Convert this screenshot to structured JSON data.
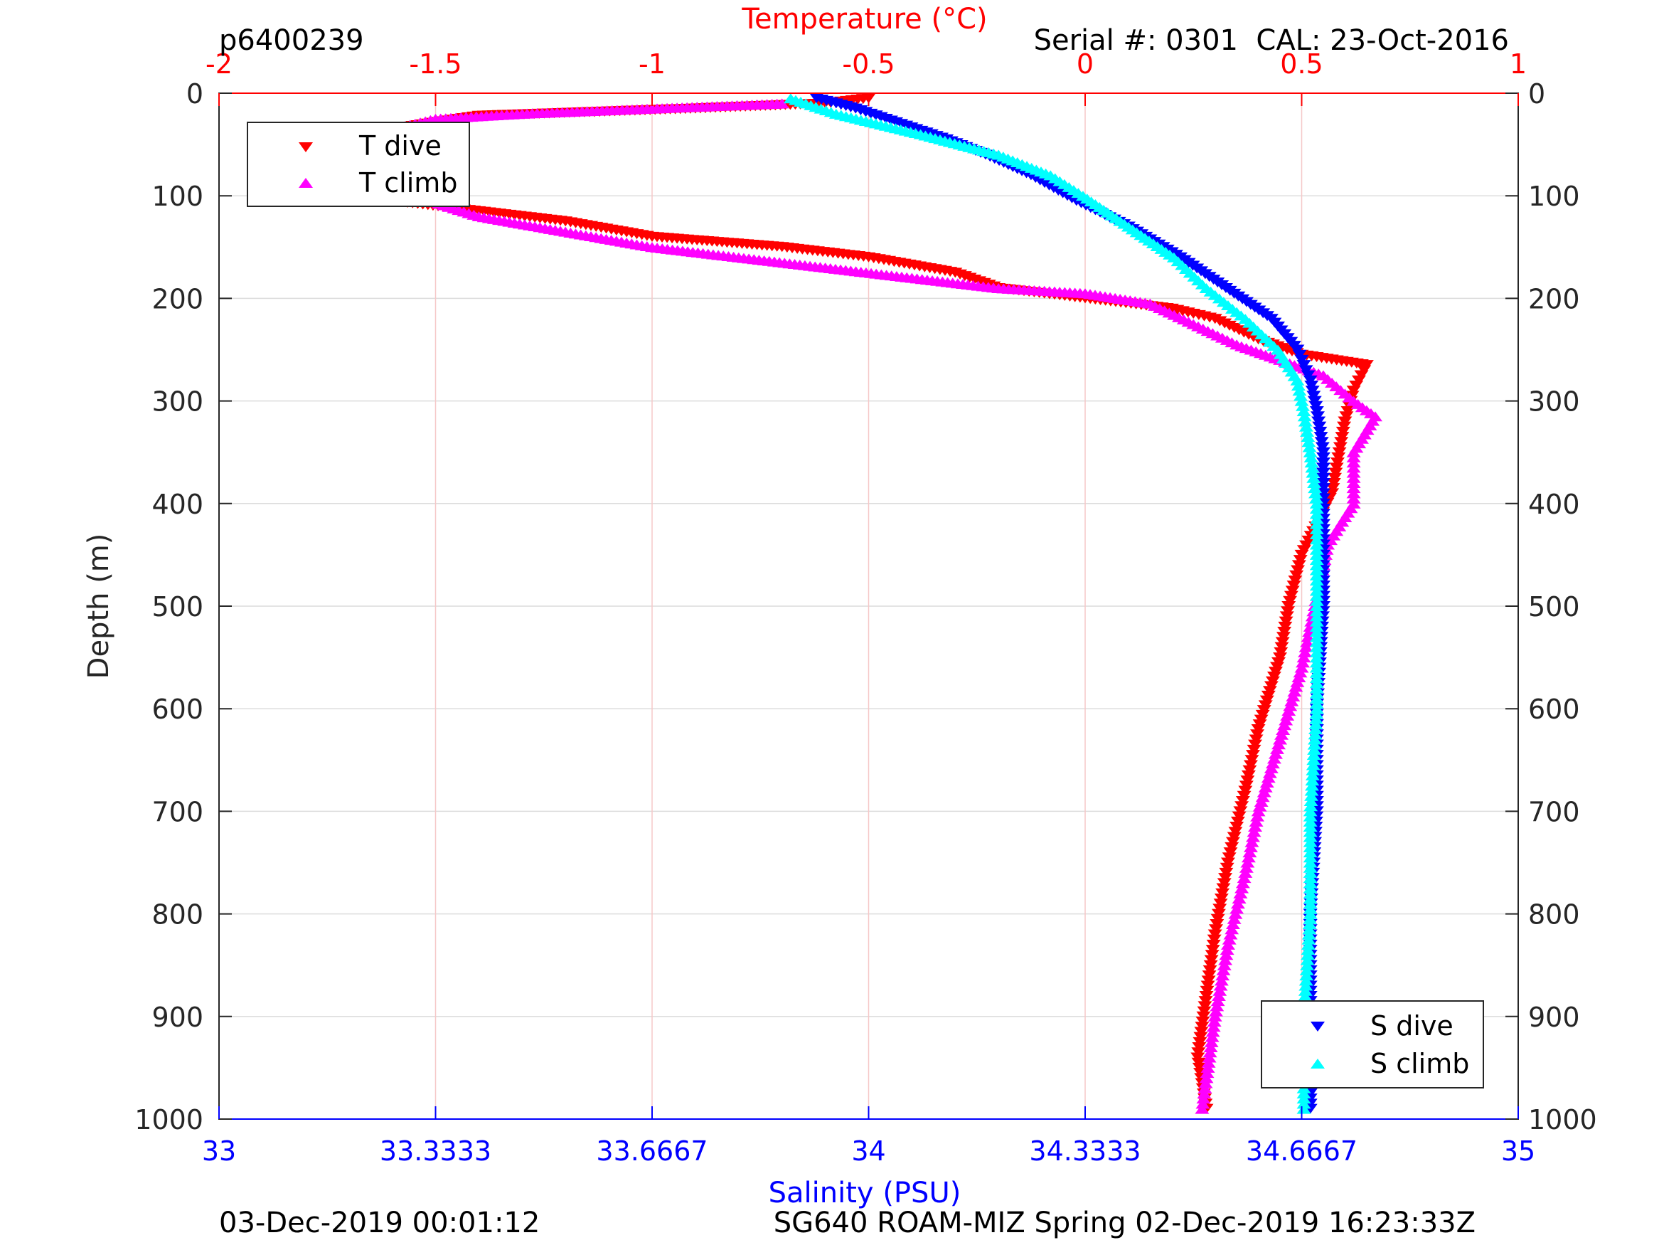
{
  "header": {
    "profile_id": "p6400239",
    "serial_text": "Serial #: 0301  CAL: 23-Oct-2016"
  },
  "footer": {
    "left_text": "03-Dec-2019 00:01:12",
    "right_text": "SG640 ROAM-MIZ Spring 02-Dec-2019 16:23:33Z"
  },
  "colors": {
    "temperature_axis": "#ff0000",
    "salinity_axis": "#0000ff",
    "t_dive": "#ff0000",
    "t_climb": "#ff00ff",
    "s_dive": "#0000ff",
    "s_climb": "#00ffff"
  },
  "chart_data": {
    "type": "scatter",
    "y_axis": {
      "label": "Depth (m)",
      "range": [
        0,
        1000
      ],
      "reversed": true,
      "ticks": [
        "0",
        "100",
        "200",
        "300",
        "400",
        "500",
        "600",
        "700",
        "800",
        "900",
        "1000"
      ]
    },
    "x_axis_top": {
      "label": "Temperature (°C)",
      "range": [
        -2,
        1
      ],
      "ticks": [
        "-2",
        "-1.5",
        "-1",
        "-0.5",
        "0",
        "0.5",
        "1"
      ]
    },
    "x_axis_bottom": {
      "label": "Salinity (PSU)",
      "range": [
        33,
        35
      ],
      "ticks": [
        "33",
        "33.3333",
        "33.6667",
        "34",
        "34.3333",
        "34.6667",
        "35"
      ]
    },
    "grid": true,
    "legends": [
      {
        "position": "top-left",
        "entries": [
          "T dive",
          "T climb"
        ]
      },
      {
        "position": "bottom-right",
        "entries": [
          "S dive",
          "S climb"
        ]
      }
    ],
    "series": [
      {
        "name": "T dive",
        "axis": "temperature",
        "marker": "triangle-down",
        "points": [
          [
            -0.5,
            5
          ],
          [
            -0.6,
            10
          ],
          [
            -0.9,
            15
          ],
          [
            -1.4,
            22
          ],
          [
            -1.6,
            35
          ],
          [
            -1.75,
            55
          ],
          [
            -1.8,
            75
          ],
          [
            -1.78,
            95
          ],
          [
            -1.6,
            105
          ],
          [
            -1.4,
            115
          ],
          [
            -1.2,
            125
          ],
          [
            -1.0,
            140
          ],
          [
            -0.7,
            150
          ],
          [
            -0.5,
            160
          ],
          [
            -0.3,
            175
          ],
          [
            -0.2,
            190
          ],
          [
            0.0,
            200
          ],
          [
            0.2,
            210
          ],
          [
            0.3,
            220
          ],
          [
            0.4,
            240
          ],
          [
            0.5,
            255
          ],
          [
            0.65,
            265
          ],
          [
            0.62,
            290
          ],
          [
            0.6,
            320
          ],
          [
            0.57,
            390
          ],
          [
            0.5,
            450
          ],
          [
            0.47,
            500
          ],
          [
            0.45,
            550
          ],
          [
            0.4,
            620
          ],
          [
            0.37,
            680
          ],
          [
            0.33,
            750
          ],
          [
            0.3,
            820
          ],
          [
            0.28,
            880
          ],
          [
            0.26,
            940
          ],
          [
            0.28,
            990
          ]
        ]
      },
      {
        "name": "T climb",
        "axis": "temperature",
        "marker": "triangle-up",
        "points": [
          [
            -0.7,
            10
          ],
          [
            -1.0,
            15
          ],
          [
            -1.3,
            20
          ],
          [
            -1.5,
            25
          ],
          [
            -1.7,
            45
          ],
          [
            -1.75,
            70
          ],
          [
            -1.72,
            90
          ],
          [
            -1.55,
            100
          ],
          [
            -1.4,
            120
          ],
          [
            -1.2,
            135
          ],
          [
            -1.0,
            150
          ],
          [
            -0.8,
            160
          ],
          [
            -0.6,
            170
          ],
          [
            -0.4,
            180
          ],
          [
            -0.2,
            190
          ],
          [
            0.0,
            195
          ],
          [
            0.15,
            205
          ],
          [
            0.25,
            225
          ],
          [
            0.35,
            245
          ],
          [
            0.45,
            260
          ],
          [
            0.55,
            275
          ],
          [
            0.62,
            300
          ],
          [
            0.67,
            315
          ],
          [
            0.62,
            350
          ],
          [
            0.62,
            400
          ],
          [
            0.56,
            440
          ],
          [
            0.53,
            500
          ],
          [
            0.5,
            560
          ],
          [
            0.45,
            630
          ],
          [
            0.4,
            700
          ],
          [
            0.37,
            760
          ],
          [
            0.33,
            830
          ],
          [
            0.3,
            900
          ],
          [
            0.28,
            960
          ],
          [
            0.27,
            990
          ]
        ]
      },
      {
        "name": "S dive",
        "axis": "salinity",
        "marker": "triangle-down",
        "points": [
          [
            33.92,
            5
          ],
          [
            33.98,
            15
          ],
          [
            34.05,
            30
          ],
          [
            34.12,
            45
          ],
          [
            34.18,
            60
          ],
          [
            34.25,
            80
          ],
          [
            34.32,
            105
          ],
          [
            34.4,
            130
          ],
          [
            34.48,
            160
          ],
          [
            34.55,
            190
          ],
          [
            34.62,
            220
          ],
          [
            34.66,
            250
          ],
          [
            34.68,
            280
          ],
          [
            34.69,
            310
          ],
          [
            34.7,
            350
          ],
          [
            34.7,
            400
          ],
          [
            34.7,
            500
          ],
          [
            34.69,
            600
          ],
          [
            34.69,
            700
          ],
          [
            34.68,
            800
          ],
          [
            34.68,
            900
          ],
          [
            34.68,
            990
          ]
        ]
      },
      {
        "name": "S climb",
        "axis": "salinity",
        "marker": "triangle-up",
        "points": [
          [
            33.88,
            5
          ],
          [
            33.95,
            20
          ],
          [
            34.08,
            40
          ],
          [
            34.2,
            60
          ],
          [
            34.28,
            80
          ],
          [
            34.33,
            100
          ],
          [
            34.4,
            130
          ],
          [
            34.47,
            160
          ],
          [
            34.52,
            190
          ],
          [
            34.58,
            220
          ],
          [
            34.63,
            250
          ],
          [
            34.66,
            280
          ],
          [
            34.67,
            310
          ],
          [
            34.68,
            350
          ],
          [
            34.69,
            400
          ],
          [
            34.69,
            500
          ],
          [
            34.69,
            600
          ],
          [
            34.68,
            700
          ],
          [
            34.68,
            800
          ],
          [
            34.67,
            900
          ],
          [
            34.67,
            990
          ]
        ]
      }
    ]
  }
}
